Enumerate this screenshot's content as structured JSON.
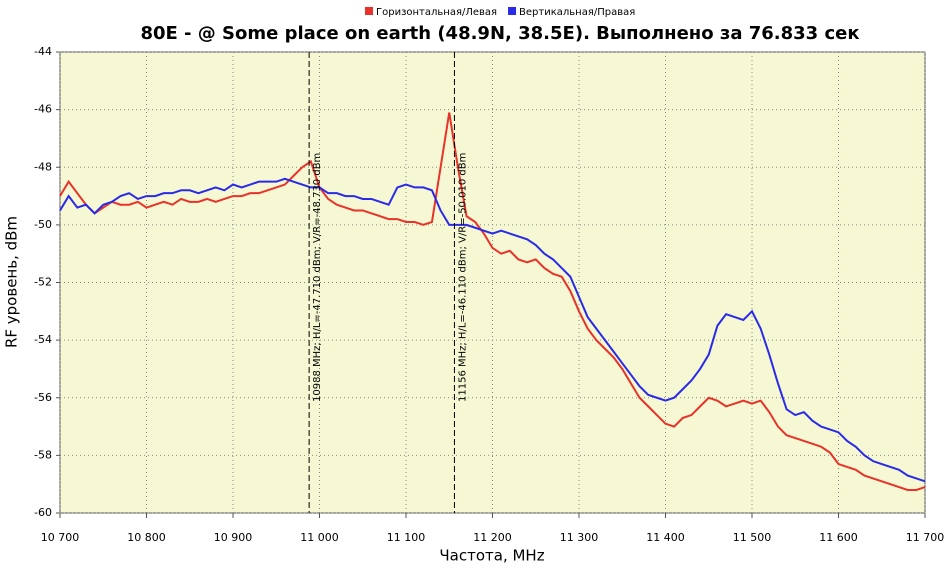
{
  "chart_data": {
    "type": "line",
    "title": "80E -  @ Some place on earth (48.9N, 38.5E). Выполнено за 76.833 сек",
    "x_label": "Частота, MHz",
    "y_label": "RF уровень, dBm",
    "xlim": [
      10700,
      11700
    ],
    "xticks": [
      {
        "value": 10700,
        "label": "10 700"
      },
      {
        "value": 10800,
        "label": "10 800"
      },
      {
        "value": 10900,
        "label": "10 900"
      },
      {
        "value": 11000,
        "label": "11 000"
      },
      {
        "value": 11100,
        "label": "11 100"
      },
      {
        "value": 11200,
        "label": "11 200"
      },
      {
        "value": 11300,
        "label": "11 300"
      },
      {
        "value": 11400,
        "label": "11 400"
      },
      {
        "value": 11500,
        "label": "11 500"
      },
      {
        "value": 11600,
        "label": "11 600"
      },
      {
        "value": 11700,
        "label": "11 700"
      }
    ],
    "ylim": [
      -60,
      -44
    ],
    "yticks": [
      -60,
      -58,
      -56,
      -54,
      -52,
      -50,
      -48,
      -46,
      -44
    ],
    "grid": true,
    "x": [
      10700,
      10710,
      10720,
      10730,
      10740,
      10750,
      10760,
      10770,
      10780,
      10790,
      10800,
      10810,
      10820,
      10830,
      10840,
      10850,
      10860,
      10870,
      10880,
      10890,
      10900,
      10910,
      10920,
      10930,
      10940,
      10950,
      10960,
      10970,
      10980,
      10990,
      11000,
      11010,
      11020,
      11030,
      11040,
      11050,
      11060,
      11070,
      11080,
      11090,
      11100,
      11110,
      11120,
      11130,
      11140,
      11150,
      11160,
      11170,
      11180,
      11190,
      11200,
      11210,
      11220,
      11230,
      11240,
      11250,
      11260,
      11270,
      11280,
      11290,
      11300,
      11310,
      11320,
      11330,
      11340,
      11350,
      11360,
      11370,
      11380,
      11390,
      11400,
      11410,
      11420,
      11430,
      11440,
      11450,
      11460,
      11470,
      11480,
      11490,
      11500,
      11510,
      11520,
      11530,
      11540,
      11550,
      11560,
      11570,
      11580,
      11590,
      11600,
      11610,
      11620,
      11630,
      11640,
      11650,
      11660,
      11670,
      11680,
      11690,
      11700
    ],
    "series": [
      {
        "name": "Горизонтальная/Левая",
        "color": "#e8322a",
        "values": [
          -49.0,
          -48.5,
          -48.9,
          -49.3,
          -49.6,
          -49.4,
          -49.2,
          -49.3,
          -49.3,
          -49.2,
          -49.4,
          -49.3,
          -49.2,
          -49.3,
          -49.1,
          -49.2,
          -49.2,
          -49.1,
          -49.2,
          -49.1,
          -49.0,
          -49.0,
          -48.9,
          -48.9,
          -48.8,
          -48.7,
          -48.6,
          -48.3,
          -48.0,
          -47.8,
          -48.7,
          -49.1,
          -49.3,
          -49.4,
          -49.5,
          -49.5,
          -49.6,
          -49.7,
          -49.8,
          -49.8,
          -49.9,
          -49.9,
          -50.0,
          -49.9,
          -48.0,
          -46.1,
          -48.0,
          -49.7,
          -49.9,
          -50.3,
          -50.8,
          -51.0,
          -50.9,
          -51.2,
          -51.3,
          -51.2,
          -51.5,
          -51.7,
          -51.8,
          -52.3,
          -53.0,
          -53.6,
          -54.0,
          -54.3,
          -54.6,
          -55.0,
          -55.5,
          -56.0,
          -56.3,
          -56.6,
          -56.9,
          -57.0,
          -56.7,
          -56.6,
          -56.3,
          -56.0,
          -56.1,
          -56.3,
          -56.2,
          -56.1,
          -56.2,
          -56.1,
          -56.5,
          -57.0,
          -57.3,
          -57.4,
          -57.5,
          -57.6,
          -57.7,
          -57.9,
          -58.3,
          -58.4,
          -58.5,
          -58.7,
          -58.8,
          -58.9,
          -59.0,
          -59.1,
          -59.2,
          -59.2,
          -59.1
        ]
      },
      {
        "name": "Вертикальная/Правая",
        "color": "#2a2ae8",
        "values": [
          -49.5,
          -49.0,
          -49.4,
          -49.3,
          -49.6,
          -49.3,
          -49.2,
          -49.0,
          -48.9,
          -49.1,
          -49.0,
          -49.0,
          -48.9,
          -48.9,
          -48.8,
          -48.8,
          -48.9,
          -48.8,
          -48.7,
          -48.8,
          -48.6,
          -48.7,
          -48.6,
          -48.5,
          -48.5,
          -48.5,
          -48.4,
          -48.5,
          -48.6,
          -48.7,
          -48.7,
          -48.9,
          -48.9,
          -49.0,
          -49.0,
          -49.1,
          -49.1,
          -49.2,
          -49.3,
          -48.7,
          -48.6,
          -48.7,
          -48.7,
          -48.8,
          -49.5,
          -50.0,
          -50.0,
          -50.0,
          -50.1,
          -50.2,
          -50.3,
          -50.2,
          -50.3,
          -50.4,
          -50.5,
          -50.7,
          -51.0,
          -51.2,
          -51.5,
          -51.8,
          -52.5,
          -53.2,
          -53.6,
          -54.0,
          -54.4,
          -54.8,
          -55.2,
          -55.6,
          -55.9,
          -56.0,
          -56.1,
          -56.0,
          -55.7,
          -55.4,
          -55.0,
          -54.5,
          -53.5,
          -53.1,
          -53.2,
          -53.3,
          -53.0,
          -53.6,
          -54.5,
          -55.5,
          -56.4,
          -56.6,
          -56.5,
          -56.8,
          -57.0,
          -57.1,
          -57.2,
          -57.5,
          -57.7,
          -58.0,
          -58.2,
          -58.3,
          -58.4,
          -58.5,
          -58.7,
          -58.8,
          -58.9
        ]
      }
    ],
    "annotations": [
      {
        "x": 10988,
        "text": "10988 MHz;  H/L=-47.710 dBm;  V/R=-48.730 dBm"
      },
      {
        "x": 11156,
        "text": "11156 MHz;  H/L=-46.110 dBm;  V/R=-50.010 dBm"
      }
    ]
  }
}
